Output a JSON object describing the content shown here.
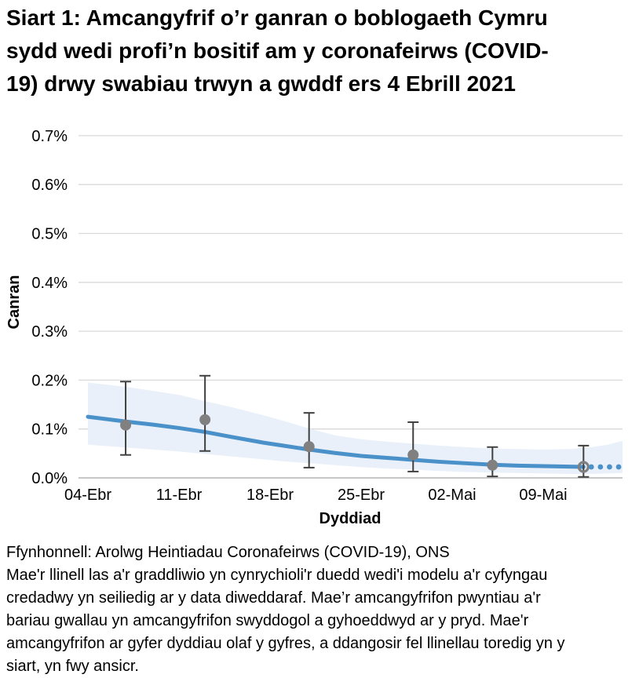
{
  "page": {
    "title_lines": [
      "Siart 1: Amcangyfrif o’r ganran o boblogaeth Cymru",
      "sydd wedi profi’n bositif am y coronafeirws (COVID-",
      "19) drwy swabiau trwyn a gwddf ers 4 Ebrill 2021"
    ]
  },
  "footer": {
    "lines": [
      "Ffynhonnell: Arolwg Heintiadau Coronafeirws (COVID-19), ONS",
      "Mae'r llinell las a'r graddliwio yn cynrychioli'r duedd wedi'i modelu a'r cyfyngau",
      "credadwy yn seiliedig ar y data diweddaraf. Mae’r amcangyfrifon pwyntiau a'r",
      "bariau gwallau yn amcangyfrifon swyddogol a gyhoeddwyd ar y pryd. Mae'r",
      "amcangyfrifon ar gyfer dyddiau olaf y gyfres, a ddangosir fel llinellau toredig yn y",
      "siart, yn fwy ansicr."
    ]
  },
  "chart_data": {
    "type": "line",
    "title": "Siart 1: Amcangyfrif o’r ganran o boblogaeth Cymru sydd wedi profi’n bositif am y coronafeirws (COVID-19) drwy swabiau trwyn a gwddf ers 4 Ebrill 2021",
    "source": "Ffynhonnell: Arolwg Heintiadau Coronafeirws (COVID-19), ONS",
    "xlabel": "Dyddiad",
    "ylabel": "Canran",
    "y_unit": "%",
    "ylim": [
      0.0,
      0.7
    ],
    "x_day0_date": "04-Ebr",
    "grid": "horizontal",
    "legend": "none",
    "yticks": [
      {
        "label": "0.0%",
        "value": 0.0
      },
      {
        "label": "0.1%",
        "value": 0.1
      },
      {
        "label": "0.2%",
        "value": 0.2
      },
      {
        "label": "0.3%",
        "value": 0.3
      },
      {
        "label": "0.4%",
        "value": 0.4
      },
      {
        "label": "0.5%",
        "value": 0.5
      },
      {
        "label": "0.6%",
        "value": 0.6
      },
      {
        "label": "0.7%",
        "value": 0.7
      }
    ],
    "xticks": [
      {
        "label": "04-Ebr",
        "day": 0
      },
      {
        "label": "11-Ebr",
        "day": 7
      },
      {
        "label": "18-Ebr",
        "day": 14
      },
      {
        "label": "25-Ebr",
        "day": 21
      },
      {
        "label": "02-Mai",
        "day": 28
      },
      {
        "label": "09-Mai",
        "day": 35
      }
    ],
    "colors": {
      "trend": "#4a90c9",
      "band": "#e9f0f9",
      "point": "#808080",
      "error": "#404040",
      "grid": "#d9d9d9",
      "axis": "#bfbfbf",
      "text": "#000000"
    },
    "trend": {
      "name": "duedd wedi'i modelu (llinell las)",
      "points": [
        [
          0,
          0.125
        ],
        [
          3,
          0.115
        ],
        [
          5,
          0.109
        ],
        [
          7,
          0.102
        ],
        [
          9,
          0.094
        ],
        [
          11,
          0.084
        ],
        [
          13.5,
          0.072
        ],
        [
          15,
          0.066
        ],
        [
          17,
          0.058
        ],
        [
          19,
          0.051
        ],
        [
          21,
          0.045
        ],
        [
          23,
          0.041
        ],
        [
          25,
          0.037
        ],
        [
          27,
          0.033
        ],
        [
          29,
          0.03
        ],
        [
          31,
          0.027
        ],
        [
          33,
          0.025
        ],
        [
          35,
          0.024
        ],
        [
          37,
          0.023
        ],
        [
          38.1,
          0.0225
        ]
      ],
      "dotted": {
        "days": [
          38.7,
          39.4,
          40.1,
          40.8
        ],
        "value": 0.0225
      }
    },
    "band": {
      "name": "cyfyngau credadwy (graddliwio)",
      "points": [
        [
          0,
          0.195,
          0.068
        ],
        [
          3,
          0.186,
          0.062
        ],
        [
          7,
          0.17,
          0.054
        ],
        [
          9,
          0.157,
          0.049
        ],
        [
          11,
          0.145,
          0.044
        ],
        [
          13.5,
          0.128,
          0.038
        ],
        [
          15,
          0.117,
          0.034
        ],
        [
          17,
          0.101,
          0.03
        ],
        [
          19,
          0.087,
          0.026
        ],
        [
          21,
          0.079,
          0.022
        ],
        [
          23,
          0.074,
          0.019
        ],
        [
          25,
          0.07,
          0.017
        ],
        [
          27,
          0.066,
          0.014
        ],
        [
          29,
          0.063,
          0.012
        ],
        [
          31,
          0.06,
          0.011
        ],
        [
          33,
          0.059,
          0.01
        ],
        [
          35,
          0.058,
          0.009
        ],
        [
          37,
          0.059,
          0.008
        ],
        [
          38.5,
          0.062,
          0.008
        ],
        [
          40,
          0.068,
          0.009
        ],
        [
          41.1,
          0.076,
          0.01
        ]
      ]
    },
    "points": {
      "name": "amcangyfrifon swyddogol gyda bariau gwallau",
      "items": [
        {
          "approx_date": "07-Ebr",
          "day": 2.9,
          "value": 0.108,
          "ci_low": 0.047,
          "ci_high": 0.197,
          "marker": "filled"
        },
        {
          "approx_date": "13-Ebr",
          "day": 9.0,
          "value": 0.119,
          "ci_low": 0.055,
          "ci_high": 0.209,
          "marker": "filled"
        },
        {
          "approx_date": "21-Ebr",
          "day": 17.0,
          "value": 0.064,
          "ci_low": 0.021,
          "ci_high": 0.133,
          "marker": "filled"
        },
        {
          "approx_date": "29-Ebr",
          "day": 25.0,
          "value": 0.047,
          "ci_low": 0.013,
          "ci_high": 0.114,
          "marker": "filled"
        },
        {
          "approx_date": "05-Mai",
          "day": 31.1,
          "value": 0.026,
          "ci_low": 0.003,
          "ci_high": 0.063,
          "marker": "filled"
        },
        {
          "approx_date": "12-Mai",
          "day": 38.1,
          "value": 0.0225,
          "ci_low": 0.002,
          "ci_high": 0.066,
          "marker": "open"
        }
      ]
    }
  }
}
